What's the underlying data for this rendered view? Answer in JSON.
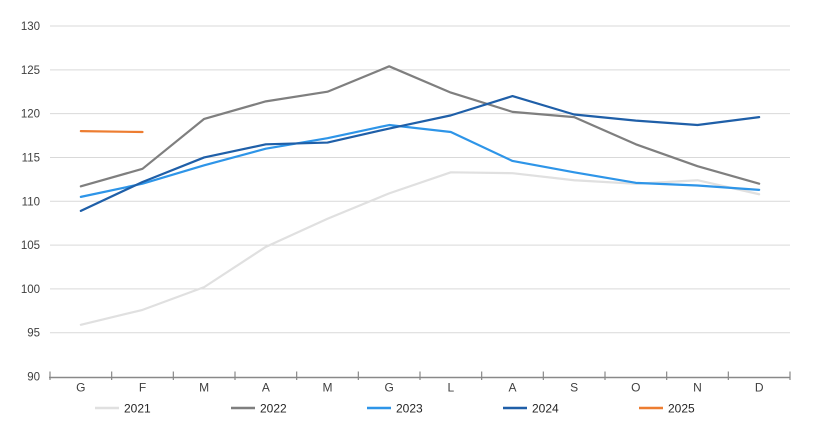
{
  "chart_data": {
    "type": "line",
    "title": "",
    "xlabel": "",
    "ylabel": "",
    "categories": [
      "G",
      "F",
      "M",
      "A",
      "M",
      "G",
      "L",
      "A",
      "S",
      "O",
      "N",
      "D"
    ],
    "series": [
      {
        "name": "2021",
        "color": "#E0E0E0",
        "values": [
          95.9,
          97.6,
          100.2,
          104.8,
          108.0,
          110.9,
          113.3,
          113.2,
          112.4,
          112.0,
          112.4,
          110.8
        ]
      },
      {
        "name": "2022",
        "color": "#7F7F7F",
        "values": [
          111.7,
          113.7,
          119.4,
          121.4,
          122.5,
          125.4,
          122.4,
          120.2,
          119.6,
          116.5,
          114.0,
          112.0
        ]
      },
      {
        "name": "2023",
        "color": "#2E95E8",
        "values": [
          110.5,
          112.0,
          114.1,
          116.0,
          117.2,
          118.7,
          117.9,
          114.6,
          113.3,
          112.1,
          111.8,
          111.3
        ]
      },
      {
        "name": "2024",
        "color": "#1F5FA8",
        "values": [
          108.9,
          112.2,
          115.0,
          116.5,
          116.7,
          118.3,
          119.8,
          122.0,
          119.9,
          119.2,
          118.7,
          119.6
        ]
      },
      {
        "name": "2025",
        "color": "#ED7D31",
        "values": [
          118.0,
          117.9,
          null,
          null,
          null,
          null,
          null,
          null,
          null,
          null,
          null,
          null
        ]
      }
    ],
    "ylim": [
      90,
      130
    ],
    "yticks": [
      90,
      95,
      100,
      105,
      110,
      115,
      120,
      125,
      130
    ],
    "grid": true,
    "legend_position": "bottom",
    "gridline_color": "#D9D9D9",
    "axis_color": "#898989",
    "tick_label_color": "#404040",
    "legend_text_color": "#262626"
  }
}
